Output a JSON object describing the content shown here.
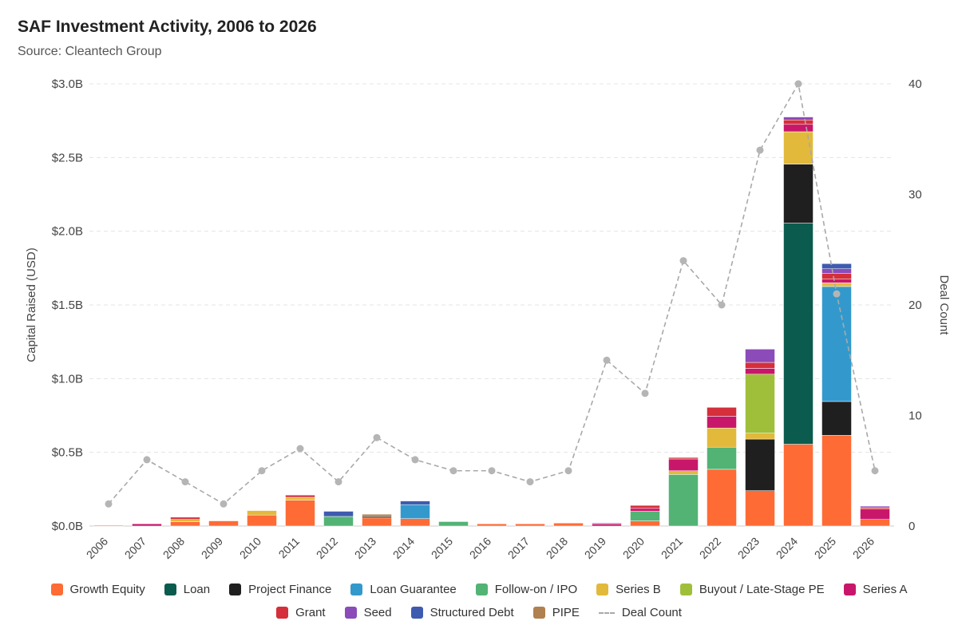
{
  "title": "SAF Investment Activity, 2006 to 2026",
  "subtitle": "Source: Cleantech Group",
  "chart_data": {
    "type": "bar",
    "stacked": true,
    "categories": [
      "2006",
      "2007",
      "2008",
      "2009",
      "2010",
      "2011",
      "2012",
      "2013",
      "2014",
      "2015",
      "2016",
      "2017",
      "2018",
      "2019",
      "2020",
      "2021",
      "2022",
      "2023",
      "2024",
      "2025",
      "2026"
    ],
    "ylabel": "Capital Raised (USD)",
    "y2label": "Deal Count",
    "ylim": [
      0,
      3.0
    ],
    "y2lim": [
      0,
      40
    ],
    "yticks": [
      "$0.0B",
      "$0.5B",
      "$1.0B",
      "$1.5B",
      "$2.0B",
      "$2.5B",
      "$3.0B"
    ],
    "y2ticks": [
      "0",
      "10",
      "20",
      "30",
      "40"
    ],
    "grid": true,
    "legend_position": "bottom",
    "series": [
      {
        "name": "Growth Equity",
        "color": "#ff6b35",
        "values": [
          0.005,
          0,
          0.03,
          0.035,
          0.075,
          0.175,
          0,
          0.055,
          0.05,
          0,
          0.015,
          0.015,
          0.02,
          0,
          0.035,
          0,
          0.385,
          0.24,
          0.555,
          0.615,
          0.045
        ]
      },
      {
        "name": "Loan",
        "color": "#0b5b4e",
        "values": [
          0,
          0,
          0,
          0,
          0,
          0,
          0,
          0,
          0,
          0,
          0,
          0,
          0,
          0,
          0,
          0,
          0,
          0,
          1.5,
          0,
          0
        ]
      },
      {
        "name": "Project Finance",
        "color": "#1f1f1f",
        "values": [
          0,
          0,
          0,
          0,
          0,
          0,
          0,
          0.01,
          0,
          0,
          0,
          0,
          0,
          0,
          0,
          0,
          0,
          0.35,
          0.4,
          0.23,
          0
        ]
      },
      {
        "name": "Loan Guarantee",
        "color": "#3399cc",
        "values": [
          0,
          0,
          0,
          0,
          0,
          0,
          0,
          0,
          0.095,
          0,
          0,
          0,
          0,
          0,
          0,
          0,
          0,
          0,
          0,
          0.78,
          0
        ]
      },
      {
        "name": "Follow-on / IPO",
        "color": "#52b375",
        "values": [
          0,
          0,
          0,
          0,
          0,
          0,
          0.065,
          0,
          0,
          0.03,
          0,
          0,
          0,
          0,
          0.065,
          0.35,
          0.15,
          0,
          0,
          0,
          0
        ]
      },
      {
        "name": "Series B",
        "color": "#e2b93b",
        "values": [
          0,
          0,
          0.015,
          0,
          0.03,
          0.02,
          0,
          0,
          0,
          0,
          0,
          0,
          0,
          0,
          0,
          0.025,
          0.13,
          0.04,
          0.22,
          0.025,
          0
        ]
      },
      {
        "name": "Buyout / Late-Stage PE",
        "color": "#9fbf3b",
        "values": [
          0,
          0,
          0,
          0,
          0,
          0,
          0,
          0,
          0,
          0,
          0,
          0,
          0,
          0,
          0,
          0,
          0,
          0.4,
          0,
          0,
          0
        ]
      },
      {
        "name": "Series A",
        "color": "#c8176b",
        "values": [
          0,
          0.015,
          0,
          0,
          0,
          0,
          0,
          0,
          0,
          0,
          0,
          0,
          0,
          0.015,
          0.02,
          0.08,
          0.08,
          0.04,
          0.05,
          0.025,
          0.07
        ]
      },
      {
        "name": "Grant",
        "color": "#d42f3a",
        "values": [
          0,
          0,
          0.015,
          0,
          0,
          0.015,
          0,
          0,
          0,
          0,
          0,
          0,
          0,
          0,
          0.02,
          0.01,
          0.06,
          0.04,
          0.03,
          0.04,
          0.01
        ]
      },
      {
        "name": "Seed",
        "color": "#8b4bb8",
        "values": [
          0,
          0,
          0,
          0,
          0,
          0,
          0,
          0,
          0,
          0,
          0,
          0,
          0,
          0.005,
          0,
          0,
          0,
          0.09,
          0.02,
          0.03,
          0.01
        ]
      },
      {
        "name": "Structured Debt",
        "color": "#3f5bb0",
        "values": [
          0,
          0,
          0,
          0,
          0,
          0,
          0.035,
          0,
          0.025,
          0,
          0,
          0,
          0,
          0,
          0,
          0,
          0,
          0,
          0,
          0.035,
          0
        ]
      },
      {
        "name": "PIPE",
        "color": "#b08050",
        "values": [
          0,
          0,
          0,
          0,
          0,
          0,
          0,
          0.015,
          0,
          0,
          0,
          0,
          0,
          0,
          0,
          0,
          0,
          0,
          0,
          0,
          0
        ]
      }
    ],
    "deal_count": {
      "name": "Deal Count",
      "color": "#a9a9a9",
      "values": [
        2,
        6,
        4,
        2,
        5,
        7,
        4,
        8,
        6,
        5,
        5,
        4,
        5,
        15,
        12,
        24,
        20,
        34,
        40,
        21,
        5
      ]
    }
  }
}
